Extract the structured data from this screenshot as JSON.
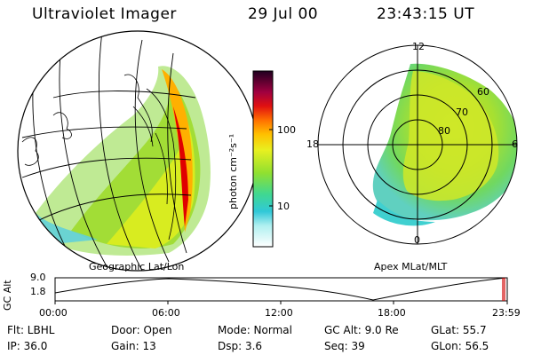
{
  "header": {
    "instrument": "Ultraviolet Imager",
    "date": "29 Jul 00",
    "time": "23:43:15 UT"
  },
  "panels": {
    "left_caption": "Geographic Lat/Lon",
    "right_caption": "Apex MLat/MLT"
  },
  "colorbar": {
    "unit_label": "photon cm⁻²s⁻¹",
    "ticks": [
      "100",
      "10"
    ],
    "scale": "log"
  },
  "polar_plot": {
    "mlt_labels": [
      "12",
      "18",
      "6",
      "0"
    ],
    "lat_rings": [
      "60",
      "70",
      "80"
    ]
  },
  "altitude_track": {
    "axis_label": "GC Alt",
    "y_ticks": [
      "9.0",
      "1.8"
    ],
    "x_ticks": [
      "00:00",
      "06:00",
      "12:00",
      "18:00",
      "23:59"
    ],
    "current_marker": "23:43"
  },
  "status": {
    "flt": "Flt: LBHL",
    "door": "Door: Open",
    "mode": "Mode: Normal",
    "gc_alt": "GC Alt: 9.0 Re",
    "glat": "GLat:  55.7",
    "ip": "IP: 36.0",
    "gain": "Gain: 13",
    "dsp": "Dsp:    3.6",
    "seq": "Seq: 39",
    "glon": "GLon:  56.5"
  },
  "colors": {
    "aurora_low": "#40d0e0",
    "aurora_mid": "#a8e020",
    "aurora_high": "#ffb000",
    "aurora_peak": "#e00000",
    "track_marker": "#d00000"
  }
}
